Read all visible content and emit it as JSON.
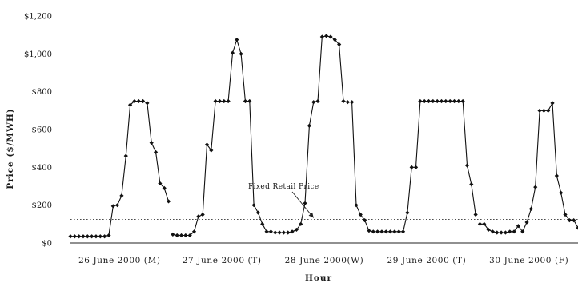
{
  "chart_data": {
    "type": "line",
    "xlabel": "Hour",
    "ylabel": "Price ($/MWH)",
    "ylim": [
      0,
      1200
    ],
    "y_ticks": [
      "$0",
      "$200",
      "$400",
      "$600",
      "$800",
      "$1,000",
      "$1,200"
    ],
    "y_tick_values": [
      0,
      200,
      400,
      600,
      800,
      1000,
      1200
    ],
    "x_day_labels": [
      "26 June 2000 (M)",
      "27 June 2000 (T)",
      "28 June 2000(W)",
      "29 June 2000 (T)",
      "30 June 2000 (F)"
    ],
    "xlim": [
      1,
      120
    ],
    "grid": false,
    "series": [
      {
        "values": [
          35,
          35,
          35,
          35,
          35,
          35,
          35,
          35,
          35,
          40,
          195,
          200,
          250,
          460,
          730,
          750,
          750,
          750,
          740,
          530,
          480,
          315,
          290,
          220,
          45,
          40,
          40,
          40,
          40,
          60,
          140,
          150,
          520,
          490,
          750,
          750,
          750,
          750,
          1005,
          1075,
          1000,
          750,
          750,
          200,
          160,
          100,
          60,
          60,
          55,
          55,
          55,
          55,
          60,
          70,
          100,
          210,
          620,
          745,
          750,
          1090,
          1095,
          1090,
          1075,
          1050,
          750,
          745,
          745,
          200,
          150,
          120,
          65,
          60,
          60,
          60,
          60,
          60,
          60,
          60,
          60,
          160,
          400,
          400,
          750,
          750,
          750,
          750,
          750,
          750,
          750,
          750,
          750,
          750,
          750,
          410,
          310,
          150,
          100,
          100,
          70,
          60,
          55,
          55,
          55,
          60,
          60,
          90,
          60,
          110,
          180,
          295,
          700,
          700,
          700,
          740,
          355,
          265,
          150,
          120,
          120,
          80
        ]
      }
    ],
    "reference_line": {
      "label": "Fixed Retail Price",
      "value": 125
    },
    "annotation": {
      "text": "Fixed Retail Price",
      "arrow_to_x": 58,
      "arrow_to_y": 125
    }
  }
}
